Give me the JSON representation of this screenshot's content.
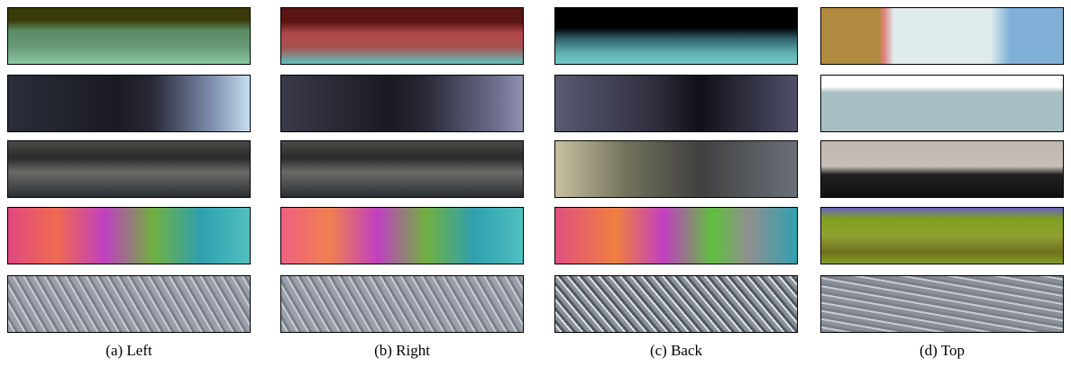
{
  "captions": [
    "(a) Left",
    "(b) Right",
    "(c) Back",
    "(d) Top"
  ]
}
